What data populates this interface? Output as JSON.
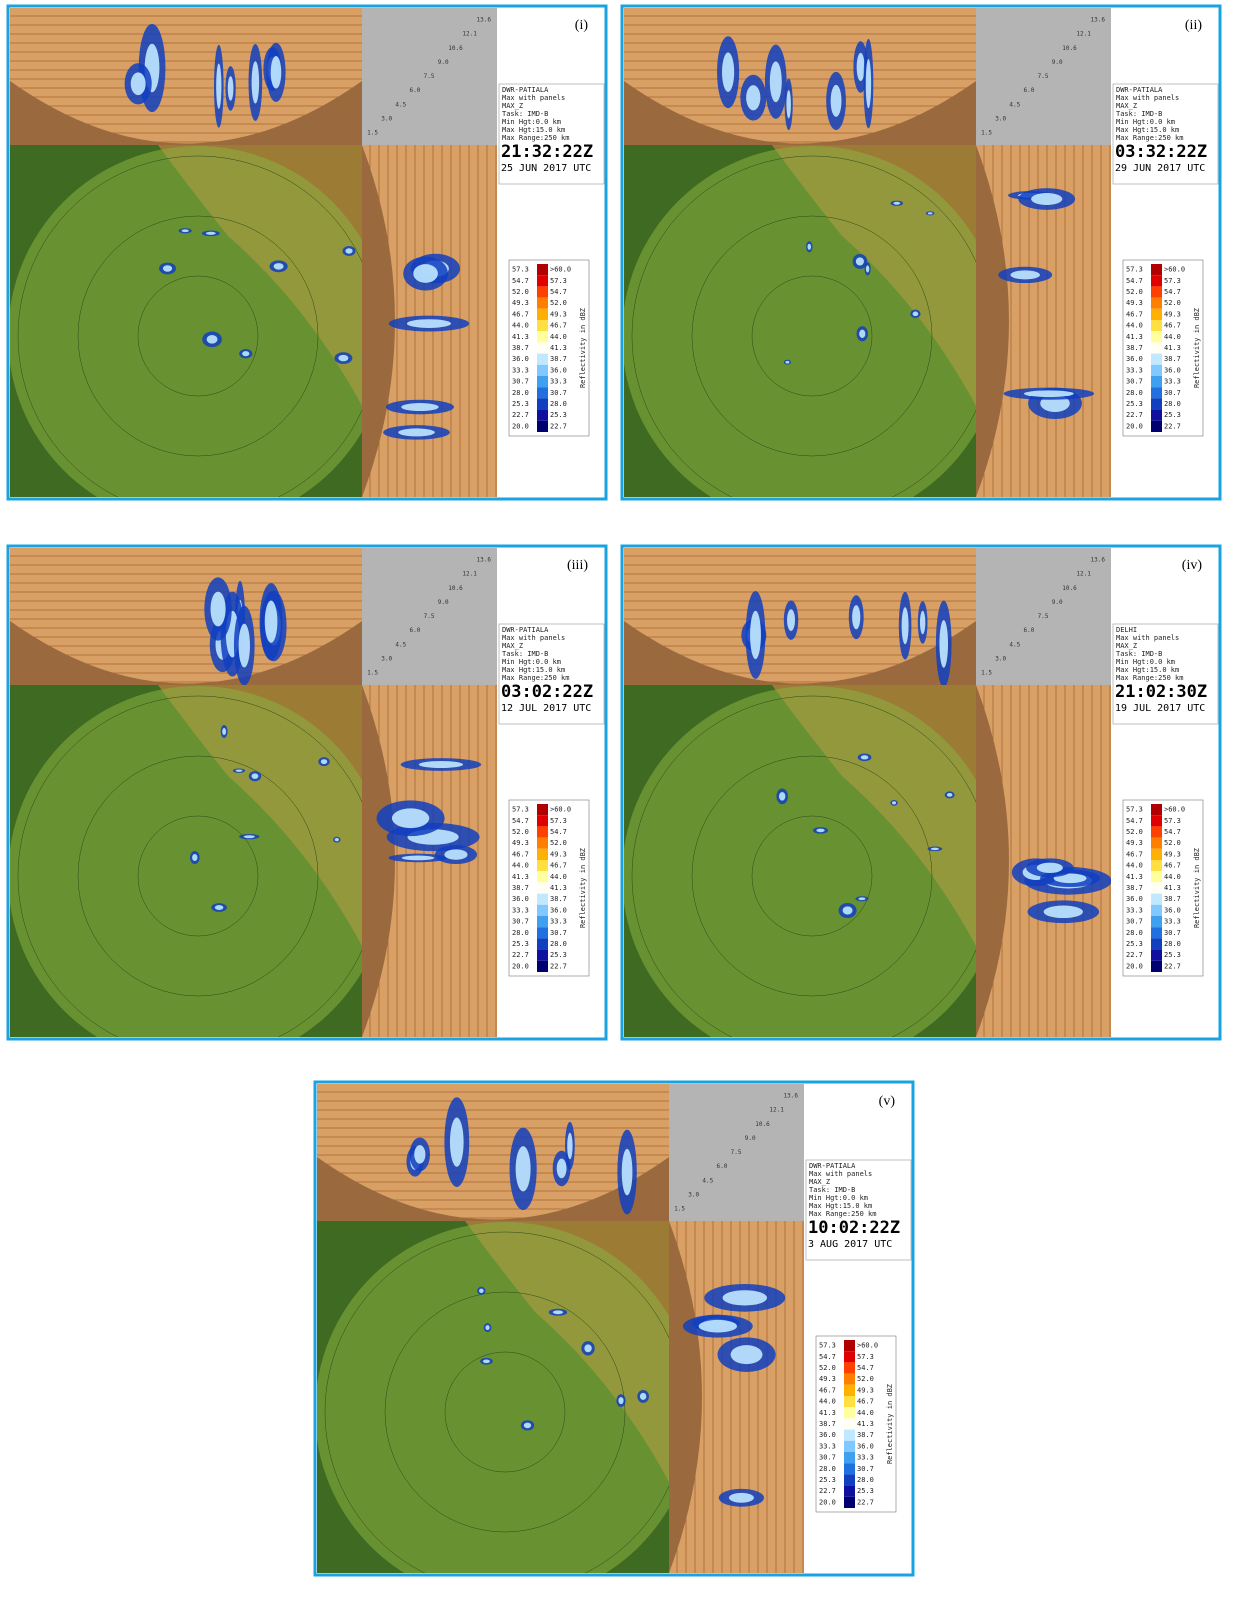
{
  "panels": [
    {
      "label": "(i)",
      "info": [
        "DWR-PATIALA",
        "Max with panels",
        "MAX_Z",
        "Task: IMD-B",
        "Min Hgt:0.0 km",
        "Max Hgt:15.0 km",
        "Max Range:250 km"
      ],
      "time": "21:32:22Z",
      "date": "25 JUN 2017 UTC"
    },
    {
      "label": "(ii)",
      "info": [
        "DWR-PATIALA",
        "Max with panels",
        "MAX_Z",
        "Task: IMD-B",
        "Min Hgt:0.0 km",
        "Max Hgt:15.0 km",
        "Max Range:250 km"
      ],
      "time": "03:32:22Z",
      "date": "29 JUN 2017 UTC"
    },
    {
      "label": "(iii)",
      "info": [
        "DWR-PATIALA",
        "Max with panels",
        "MAX_Z",
        "Task: IMD-B",
        "Min Hgt:0.0 km",
        "Max Hgt:15.0 km",
        "Max Range:250 km"
      ],
      "time": "03:02:22Z",
      "date": "12 JUL 2017 UTC"
    },
    {
      "label": "(iv)",
      "info": [
        "DELHI",
        "Max with panels",
        "MAX_Z",
        "Task: IMD-B",
        "Min Hgt:0.0 km",
        "Max Hgt:15.0 km",
        "Max Range:250 km"
      ],
      "time": "21:02:30Z",
      "date": "19 JUL 2017 UTC"
    },
    {
      "label": "(v)",
      "info": [
        "DWR-PATIALA",
        "Max with panels",
        "MAX_Z",
        "Task: IMD-B",
        "Min Hgt:0.0 km",
        "Max Hgt:15.0 km",
        "Max Range:250 km"
      ],
      "time": "10:02:22Z",
      "date": "3 AUG 2017 UTC"
    }
  ],
  "height_scale": [
    "13.6",
    "12.1",
    "10.6",
    "9.0",
    "7.5",
    "6.0",
    "4.5",
    "3.0",
    "1.5"
  ],
  "legend": {
    "title": "Reflectivity in dBZ",
    "rows": [
      {
        "low": "57.3",
        "high": ">60.0",
        "color": "#b00000"
      },
      {
        "low": "54.7",
        "high": "57.3",
        "color": "#e00000"
      },
      {
        "low": "52.0",
        "high": "54.7",
        "color": "#ff4000"
      },
      {
        "low": "49.3",
        "high": "52.0",
        "color": "#ff8000"
      },
      {
        "low": "46.7",
        "high": "49.3",
        "color": "#ffb000"
      },
      {
        "low": "44.0",
        "high": "46.7",
        "color": "#ffe040"
      },
      {
        "low": "41.3",
        "high": "44.0",
        "color": "#ffffa0"
      },
      {
        "low": "38.7",
        "high": "41.3",
        "color": "#fffff4"
      },
      {
        "low": "36.0",
        "high": "38.7",
        "color": "#c0e8ff"
      },
      {
        "low": "33.3",
        "high": "36.0",
        "color": "#80c8ff"
      },
      {
        "low": "30.7",
        "high": "33.3",
        "color": "#40a0f0"
      },
      {
        "low": "28.0",
        "high": "30.7",
        "color": "#2070e0"
      },
      {
        "low": "25.3",
        "high": "28.0",
        "color": "#1040c0"
      },
      {
        "low": "22.7",
        "high": "25.3",
        "color": "#1010a0"
      },
      {
        "low": "20.0",
        "high": "22.7",
        "color": "#000070"
      }
    ]
  }
}
